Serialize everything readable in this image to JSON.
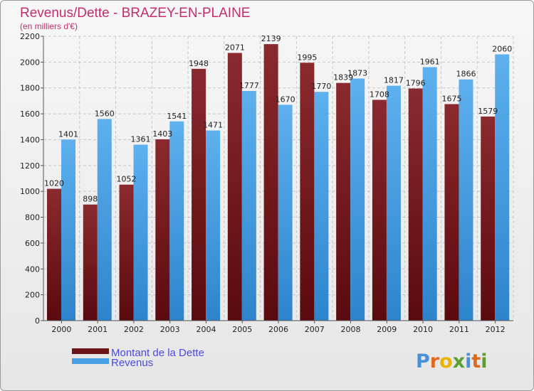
{
  "chart_data": {
    "type": "bar",
    "title": "Revenus/Dette - BRAZEY-EN-PLAINE",
    "subtitle": "(en milliers d'€)",
    "categories": [
      "2000",
      "2001",
      "2002",
      "2003",
      "2004",
      "2005",
      "2006",
      "2007",
      "2008",
      "2009",
      "2010",
      "2011",
      "2012"
    ],
    "series": [
      {
        "name": "Montant de la Dette",
        "color": "#7a1a1e",
        "values": [
          1020,
          898,
          1052,
          1403,
          1948,
          2071,
          2139,
          1995,
          1839,
          1708,
          1796,
          1675,
          1579
        ]
      },
      {
        "name": "Revenus",
        "color": "#4aa0e4",
        "values": [
          1401,
          1560,
          1361,
          1541,
          1471,
          1777,
          1670,
          1770,
          1873,
          1817,
          1961,
          1866,
          2060
        ]
      }
    ],
    "ylim": [
      0,
      2200
    ],
    "yticks": [
      0,
      200,
      400,
      600,
      800,
      1000,
      1200,
      1400,
      1600,
      1800,
      2000,
      2200
    ],
    "xlabel": "",
    "ylabel": "",
    "grid": true,
    "legend": "bottom-left"
  },
  "logo": {
    "letters": [
      "P",
      "r",
      "o",
      "x",
      "i",
      "t",
      "i"
    ],
    "colors": [
      "#4a90d8",
      "#e0691c",
      "#e8b400",
      "#5aa02c",
      "#4a90d8",
      "#e0691c",
      "#5aa02c"
    ]
  }
}
